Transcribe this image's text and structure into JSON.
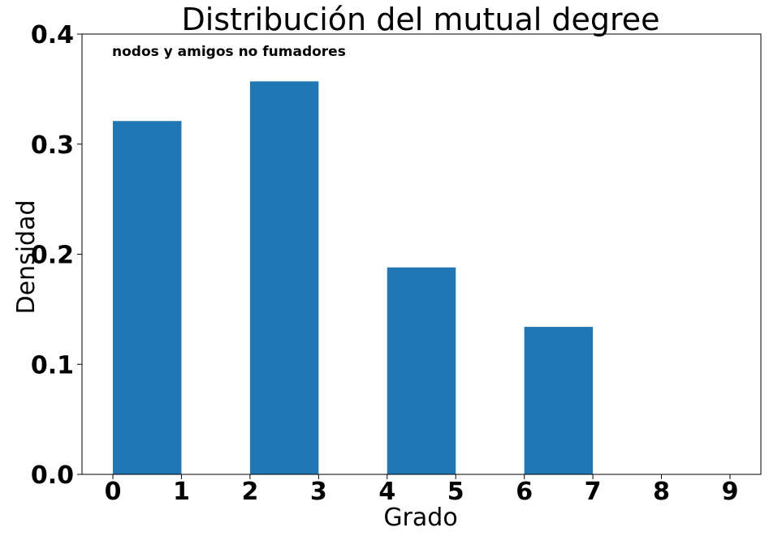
{
  "chart_data": {
    "type": "bar",
    "title": "Distribución del mutual degree",
    "xlabel": "Grado",
    "ylabel": "Densidad",
    "annotation": "nodos y amigos no fumadores",
    "bin_width": 1,
    "bins": [
      {
        "start": 0,
        "end": 1,
        "value": 0.321
      },
      {
        "start": 2,
        "end": 3,
        "value": 0.357
      },
      {
        "start": 4,
        "end": 5,
        "value": 0.188
      },
      {
        "start": 6,
        "end": 7,
        "value": 0.134
      }
    ],
    "xlim": [
      -0.45,
      9.45
    ],
    "ylim": [
      0,
      0.4
    ],
    "x_ticks": [
      0,
      1,
      2,
      3,
      4,
      5,
      6,
      7,
      8,
      9
    ],
    "x_tick_labels": [
      "0",
      "1",
      "2",
      "3",
      "4",
      "5",
      "6",
      "7",
      "8",
      "9"
    ],
    "y_ticks": [
      0,
      0.1,
      0.2,
      0.3,
      0.4
    ],
    "y_tick_labels": [
      "0.0",
      "0.1",
      "0.2",
      "0.3",
      "0.4"
    ],
    "grid": false,
    "bar_color": "#1f77b4"
  }
}
